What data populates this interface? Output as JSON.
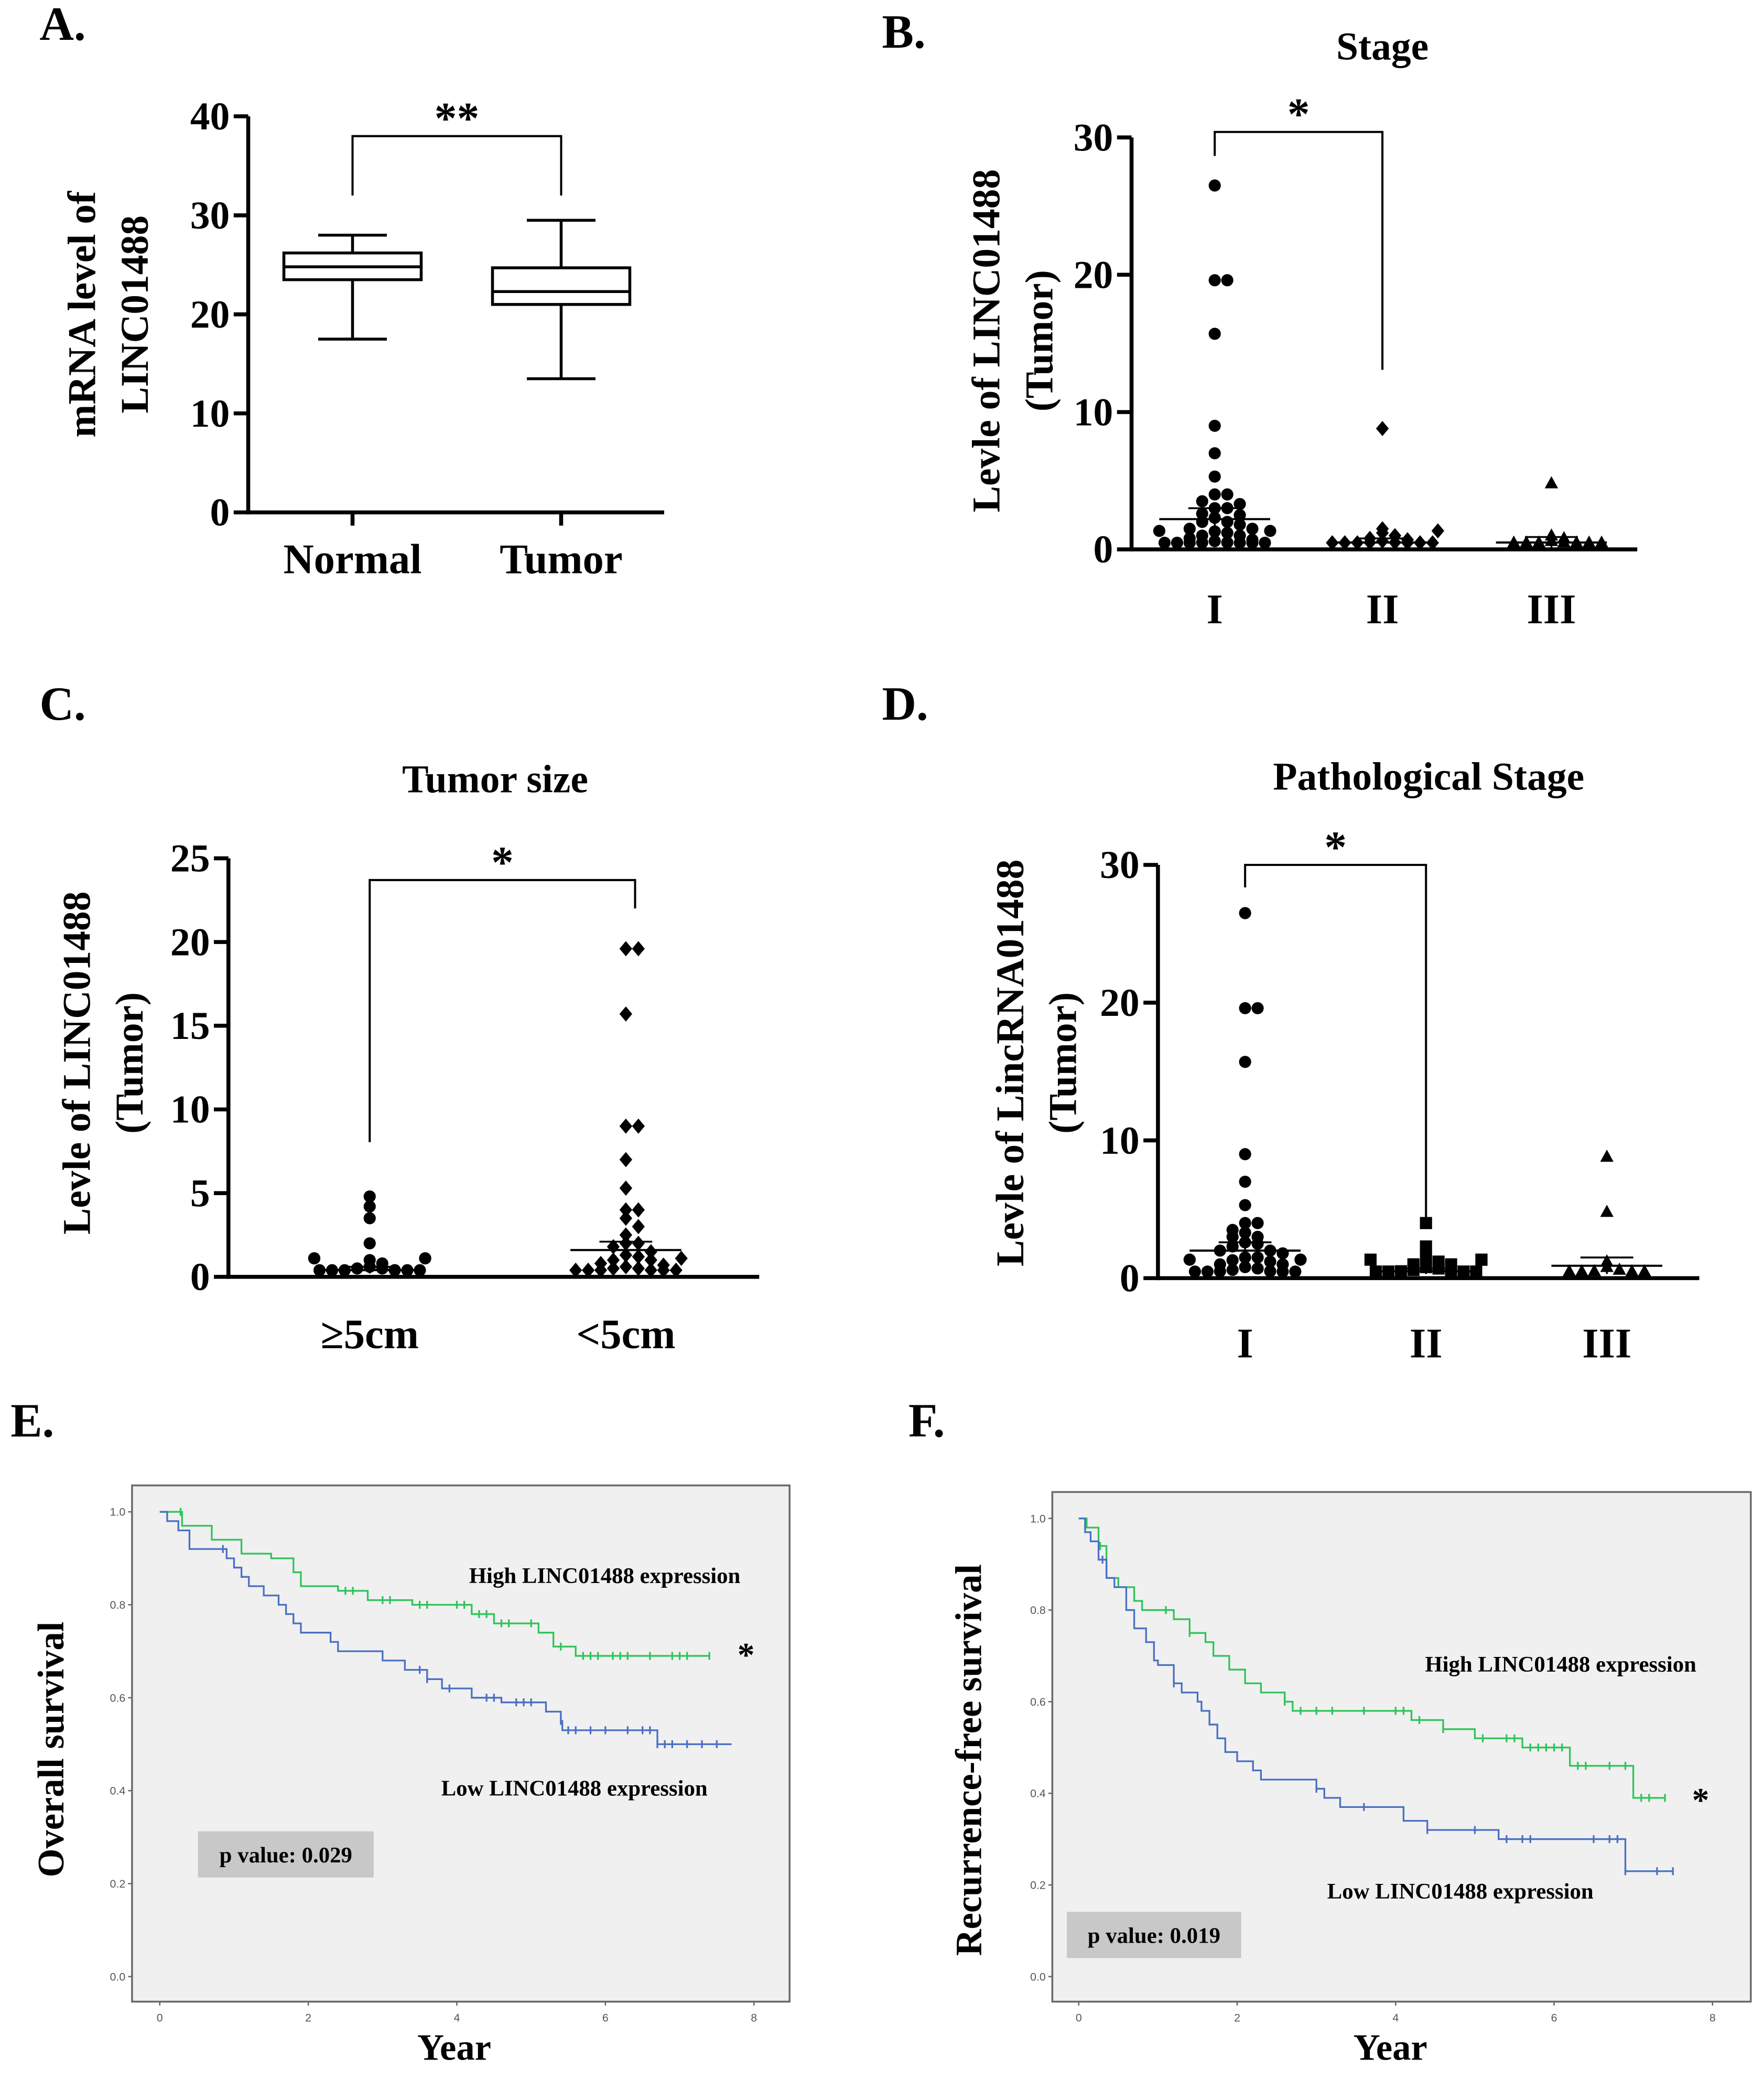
{
  "chart_data": [
    {
      "panel": "A.",
      "type": "box",
      "title": "",
      "ylabel": [
        "mRNA level of",
        "LINC01488"
      ],
      "ylim": [
        0,
        40
      ],
      "yticks": [
        0,
        10,
        20,
        30,
        40
      ],
      "categories": [
        "Normal",
        "Tumor"
      ],
      "boxes": [
        {
          "name": "Normal",
          "min": 17.5,
          "q1": 23.5,
          "median": 24.8,
          "q3": 26.2,
          "max": 28
        },
        {
          "name": "Tumor",
          "min": 13.5,
          "q1": 21,
          "median": 22.3,
          "q3": 24.7,
          "max": 29.5
        }
      ],
      "significance": {
        "label": "**",
        "between": [
          0,
          1
        ],
        "level": 38
      }
    },
    {
      "panel": "B.",
      "type": "scatter",
      "title": "Stage",
      "ylabel": [
        "Levle of LINC01488",
        "(Tumor)"
      ],
      "ylim": [
        0,
        30
      ],
      "yticks": [
        0,
        10,
        20,
        30
      ],
      "categories": [
        "I",
        "II",
        "III"
      ],
      "markers": [
        "circle",
        "diamond",
        "triangle"
      ],
      "series": [
        {
          "name": "I",
          "mean": 2.2,
          "sem": 0.8,
          "values": [
            26.5,
            19.6,
            19.6,
            15.7,
            9,
            7,
            5.3,
            4,
            4,
            3.5,
            3.3,
            3,
            3,
            2.6,
            2.5,
            2.3,
            2,
            2,
            1.8,
            1.5,
            1.5,
            1.3,
            1.2,
            1,
            1,
            0.8,
            0.7,
            0.6,
            0.5,
            0.5,
            0.4,
            0.3,
            0.3,
            0.2,
            0.2,
            0.1,
            0.1,
            0.1
          ]
        },
        {
          "name": "II",
          "mean": 0.5,
          "sem": 0.3,
          "values": [
            8.8,
            1.5,
            1.2,
            1,
            0.8,
            0.7,
            0.6,
            0.5,
            0.5,
            0.4,
            0.3,
            0.3,
            0.2,
            0.2,
            0.1,
            0.1
          ]
        },
        {
          "name": "III",
          "mean": 0.5,
          "sem": 0.4,
          "values": [
            4.8,
            1,
            0.8,
            0.6,
            0.5,
            0.4,
            0.3,
            0.2,
            0.2,
            0.1,
            0.1
          ]
        }
      ],
      "significance": {
        "label": "*",
        "between": [
          0,
          1
        ],
        "level": 30.4
      }
    },
    {
      "panel": "C.",
      "type": "scatter",
      "title": "Tumor size",
      "ylabel": [
        "Levle of LINC01488",
        "(Tumor)"
      ],
      "ylim": [
        0,
        25
      ],
      "yticks": [
        0,
        5,
        10,
        15,
        20,
        25
      ],
      "categories": [
        "≥5cm",
        "<5cm"
      ],
      "markers": [
        "circle",
        "diamond"
      ],
      "series": [
        {
          "name": "≥5cm",
          "mean": 0.4,
          "sem": 0.2,
          "values": [
            4.8,
            4.2,
            3.5,
            2,
            1,
            0.8,
            0.6,
            0.5,
            0.5,
            0.4,
            0.3,
            0.3,
            0.3,
            0.2,
            0.2,
            0.2,
            0.1,
            0.1,
            0.1,
            0.1,
            0.1
          ]
        },
        {
          "name": "<5cm",
          "mean": 1.6,
          "sem": 0.5,
          "values": [
            19.6,
            19.6,
            15.7,
            9,
            9,
            7,
            5.3,
            4,
            4,
            3.5,
            3,
            2.5,
            2,
            2,
            1.8,
            1.5,
            1.3,
            1.2,
            1,
            1,
            0.8,
            0.7,
            0.6,
            0.5,
            0.5,
            0.4,
            0.3,
            0.3,
            0.2,
            0.2,
            0.1,
            0.1
          ]
        }
      ],
      "significance": {
        "label": "*",
        "between": [
          0,
          1
        ],
        "level": 23.7
      }
    },
    {
      "panel": "D.",
      "type": "scatter",
      "title": "Pathological Stage",
      "ylabel": [
        "Levle of LincRNA01488",
        "(Tumor)"
      ],
      "ylim": [
        0,
        30
      ],
      "yticks": [
        0,
        10,
        20,
        30
      ],
      "categories": [
        "I",
        "II",
        "III"
      ],
      "markers": [
        "circle",
        "square",
        "triangle"
      ],
      "series": [
        {
          "name": "I",
          "mean": 2.0,
          "sem": 0.6,
          "values": [
            26.5,
            19.6,
            19.6,
            15.7,
            9,
            7,
            5.3,
            4,
            4,
            3.5,
            3.3,
            3,
            3,
            2.6,
            2.5,
            2.3,
            2,
            2,
            1.8,
            1.5,
            1.5,
            1.3,
            1.2,
            1,
            1,
            0.8,
            0.7,
            0.6,
            0.5,
            0.5,
            0.4,
            0.3,
            0.3,
            0.2,
            0.2,
            0.1,
            0.1,
            0.1
          ]
        },
        {
          "name": "II",
          "mean": 0.5,
          "sem": 0.2,
          "values": [
            4,
            2.3,
            1.5,
            1.2,
            1,
            1,
            0.8,
            0.7,
            0.6,
            0.5,
            0.5,
            0.4,
            0.3,
            0.3,
            0.2,
            0.2,
            0.1,
            0.1
          ]
        },
        {
          "name": "III",
          "mean": 0.9,
          "sem": 0.6,
          "values": [
            8.8,
            4.8,
            1.2,
            0.8,
            0.6,
            0.5,
            0.4,
            0.3,
            0.2,
            0.1
          ]
        }
      ],
      "significance": {
        "label": "*",
        "between": [
          0,
          1
        ],
        "level": 30
      }
    },
    {
      "panel": "E.",
      "type": "line",
      "subtype": "kaplan-meier",
      "ylabel": "Overall survival",
      "xlabel": "Year",
      "xlim": [
        0,
        8
      ],
      "xticks": [
        "0",
        "2",
        "4",
        "6",
        "8"
      ],
      "ylim": [
        0,
        1
      ],
      "yticks": [
        "0.0",
        "0.2",
        "0.4",
        "0.6",
        "0.8",
        "1.0"
      ],
      "pvalue": "p value: 0.029",
      "significance": "*",
      "series": [
        {
          "name": "High LINC01488 expression",
          "color": "#2ec45a",
          "end": 7.4,
          "steps": [
            [
              0,
              1
            ],
            [
              0.3,
              0.97
            ],
            [
              0.7,
              0.94
            ],
            [
              1.1,
              0.91
            ],
            [
              1.5,
              0.9
            ],
            [
              1.8,
              0.87
            ],
            [
              1.9,
              0.84
            ],
            [
              2.4,
              0.83
            ],
            [
              2.8,
              0.81
            ],
            [
              3.4,
              0.8
            ],
            [
              4.2,
              0.78
            ],
            [
              4.5,
              0.76
            ],
            [
              5.1,
              0.74
            ],
            [
              5.3,
              0.71
            ],
            [
              5.6,
              0.69
            ]
          ],
          "censored": [
            0.28,
            2.5,
            2.6,
            3.0,
            3.1,
            3.5,
            3.6,
            4.0,
            4.1,
            4.3,
            4.4,
            4.6,
            4.7,
            5.0,
            5.4,
            5.7,
            5.8,
            5.9,
            6.1,
            6.2,
            6.3,
            6.6,
            6.9,
            7.0,
            7.1,
            7.4
          ]
        },
        {
          "name": "Low LINC01488 expression",
          "color": "#4a6fc4",
          "end": 7.7,
          "steps": [
            [
              0,
              1
            ],
            [
              0.1,
              0.98
            ],
            [
              0.25,
              0.96
            ],
            [
              0.4,
              0.92
            ],
            [
              0.9,
              0.9
            ],
            [
              1.0,
              0.88
            ],
            [
              1.1,
              0.86
            ],
            [
              1.2,
              0.84
            ],
            [
              1.4,
              0.82
            ],
            [
              1.6,
              0.8
            ],
            [
              1.7,
              0.78
            ],
            [
              1.8,
              0.76
            ],
            [
              1.9,
              0.74
            ],
            [
              2.3,
              0.72
            ],
            [
              2.4,
              0.7
            ],
            [
              3.0,
              0.68
            ],
            [
              3.3,
              0.66
            ],
            [
              3.6,
              0.64
            ],
            [
              3.8,
              0.62
            ],
            [
              4.2,
              0.6
            ],
            [
              4.6,
              0.59
            ],
            [
              5.2,
              0.57
            ],
            [
              5.4,
              0.55
            ],
            [
              5.42,
              0.53
            ],
            [
              6.7,
              0.5
            ]
          ],
          "censored": [
            0.85,
            3.5,
            3.6,
            3.9,
            4.4,
            4.5,
            4.8,
            4.9,
            5.0,
            5.4,
            5.5,
            5.6,
            5.8,
            6.0,
            6.3,
            6.5,
            6.6,
            6.7,
            6.8,
            6.9,
            7.1,
            7.3,
            7.5
          ]
        }
      ]
    },
    {
      "panel": "F.",
      "type": "line",
      "subtype": "kaplan-meier",
      "ylabel": "Recurrence-free survival",
      "xlabel": "Year",
      "xlim": [
        0,
        8
      ],
      "xticks": [
        "0",
        "2",
        "4",
        "6",
        "8"
      ],
      "ylim": [
        0,
        1
      ],
      "yticks": [
        "0.0",
        "0.2",
        "0.4",
        "0.6",
        "0.8",
        "1.0"
      ],
      "pvalue": "p value: 0.019",
      "significance": "*",
      "series": [
        {
          "name": "High LINC01488 expression",
          "color": "#2ec45a",
          "end": 7.4,
          "steps": [
            [
              0,
              1
            ],
            [
              0.1,
              0.98
            ],
            [
              0.25,
              0.94
            ],
            [
              0.35,
              0.87
            ],
            [
              0.5,
              0.85
            ],
            [
              0.7,
              0.82
            ],
            [
              0.8,
              0.8
            ],
            [
              1.2,
              0.78
            ],
            [
              1.4,
              0.75
            ],
            [
              1.6,
              0.73
            ],
            [
              1.7,
              0.7
            ],
            [
              1.9,
              0.67
            ],
            [
              2.1,
              0.64
            ],
            [
              2.3,
              0.62
            ],
            [
              2.6,
              0.6
            ],
            [
              2.7,
              0.58
            ],
            [
              4.2,
              0.56
            ],
            [
              4.6,
              0.54
            ],
            [
              5.0,
              0.52
            ],
            [
              5.6,
              0.5
            ],
            [
              6.2,
              0.46
            ],
            [
              7.0,
              0.39
            ]
          ],
          "censored": [
            0.27,
            1.1,
            1.4,
            2.6,
            2.8,
            3.0,
            3.2,
            3.6,
            4.0,
            4.1,
            4.3,
            4.6,
            5.1,
            5.4,
            5.5,
            5.7,
            5.8,
            5.9,
            6.0,
            6.1,
            6.3,
            6.4,
            6.7,
            6.9,
            7.1,
            7.2,
            7.4
          ]
        },
        {
          "name": "Low LINC01488 expression",
          "color": "#4a6fc4",
          "end": 7.5,
          "steps": [
            [
              0,
              1
            ],
            [
              0.08,
              0.97
            ],
            [
              0.15,
              0.95
            ],
            [
              0.25,
              0.91
            ],
            [
              0.35,
              0.87
            ],
            [
              0.45,
              0.85
            ],
            [
              0.6,
              0.8
            ],
            [
              0.7,
              0.76
            ],
            [
              0.85,
              0.73
            ],
            [
              0.95,
              0.69
            ],
            [
              1.0,
              0.68
            ],
            [
              1.2,
              0.64
            ],
            [
              1.3,
              0.62
            ],
            [
              1.5,
              0.6
            ],
            [
              1.55,
              0.58
            ],
            [
              1.65,
              0.55
            ],
            [
              1.75,
              0.52
            ],
            [
              1.85,
              0.49
            ],
            [
              2.0,
              0.47
            ],
            [
              2.2,
              0.45
            ],
            [
              2.3,
              0.43
            ],
            [
              3.0,
              0.41
            ],
            [
              3.1,
              0.39
            ],
            [
              3.3,
              0.37
            ],
            [
              4.1,
              0.34
            ],
            [
              4.4,
              0.32
            ],
            [
              5.3,
              0.3
            ],
            [
              6.9,
              0.23
            ]
          ],
          "censored": [
            0.3,
            1.2,
            3.0,
            3.6,
            4.4,
            5.0,
            5.4,
            5.6,
            5.7,
            6.5,
            6.7,
            6.8,
            6.9,
            7.3,
            7.5
          ]
        }
      ]
    }
  ]
}
